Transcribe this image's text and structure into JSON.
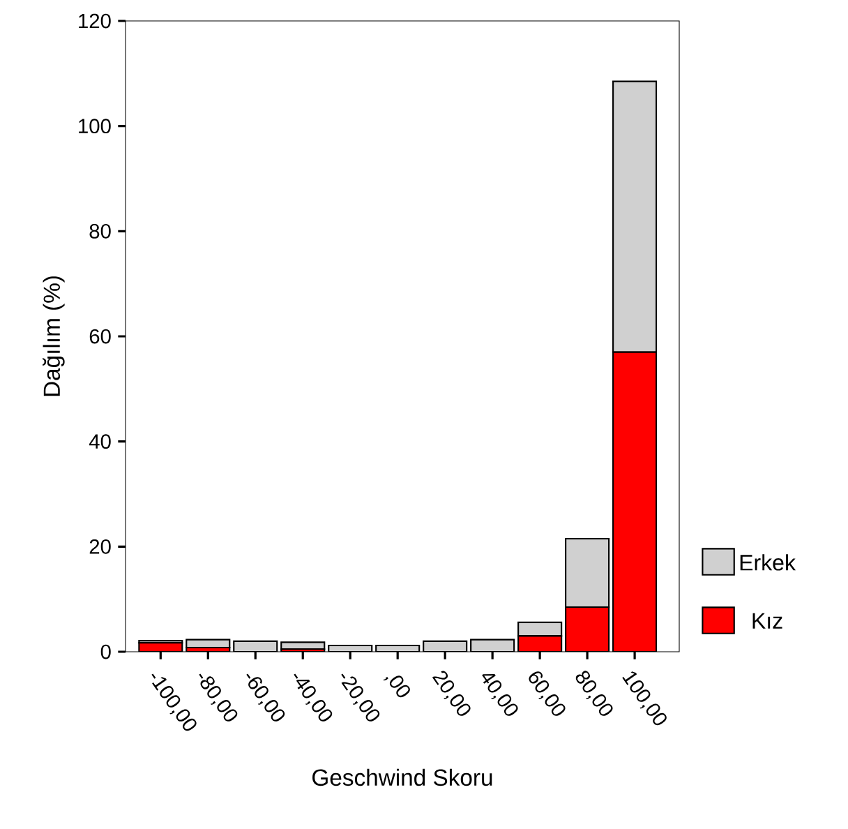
{
  "chart_data": {
    "type": "bar",
    "stacked": true,
    "xlabel": "Geschwind Skoru",
    "ylabel": "Dağılım (%)",
    "categories": [
      "-100,00",
      "-80,00",
      "-60,00",
      "-40,00",
      "-20,00",
      ",00",
      "20,00",
      "40,00",
      "60,00",
      "80,00",
      "100,00"
    ],
    "series": [
      {
        "name": "Kız",
        "color": "#ff0000",
        "values": [
          1.7,
          0.8,
          0,
          0.5,
          0,
          0,
          0,
          0,
          3,
          8.5,
          57
        ]
      },
      {
        "name": "Erkek",
        "color": "#d0d0d0",
        "values": [
          0.4,
          1.5,
          2,
          1.3,
          1.2,
          1.2,
          2,
          2.3,
          2.6,
          13,
          51.5
        ]
      }
    ],
    "ylim": [
      0,
      120
    ],
    "yticks": [
      0,
      20,
      40,
      60,
      80,
      100,
      120
    ],
    "grid": false,
    "legend": "right"
  }
}
